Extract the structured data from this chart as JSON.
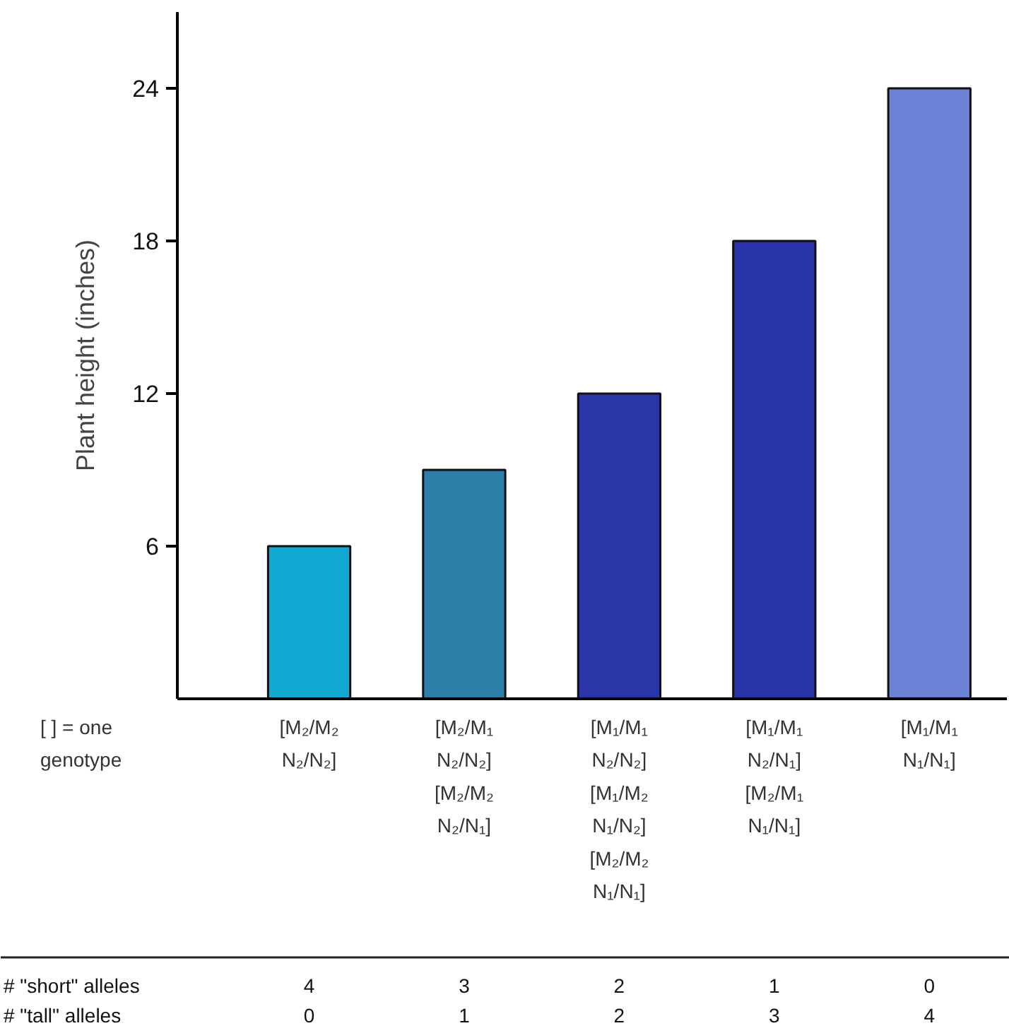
{
  "chart_data": {
    "type": "bar",
    "ylabel": "Plant height (inches)",
    "categories": [
      "[M₂/M₂\nN₂/N₂]",
      "[M₂/M₁\nN₂/N₂]\n[M₂/M₂\nN₂/N₁]",
      "[M₁/M₁\nN₂/N₂]\n[M₁/M₂\nN₁/N₂]\n[M₂/M₂\nN₁/N₁]",
      "[M₁/M₁\nN₂/N₁]\n[M₂/M₁\nN₁/N₁]",
      "[M₁/M₁\nN₁/N₁]"
    ],
    "values": [
      6,
      9,
      12,
      18,
      24
    ],
    "colors": [
      "#12a8d4",
      "#2b7fa8",
      "#2a35a8",
      "#2833a8",
      "#6b82d6"
    ],
    "ylim": [
      0,
      27
    ],
    "yticks": [
      6,
      12,
      18,
      24
    ],
    "annotations": [
      "[ ] = one\ngenotype",
      "# \"short\" alleles",
      "4",
      "3",
      "2",
      "1",
      "0",
      "# \"tall\" alleles",
      "0",
      "1",
      "2",
      "3",
      "4"
    ]
  }
}
